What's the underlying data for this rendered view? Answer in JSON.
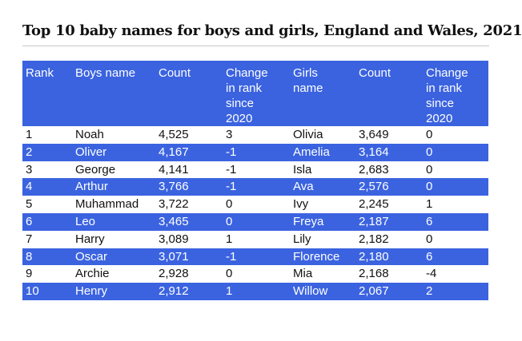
{
  "title": "Top 10 baby names for boys and girls, England and Wales, 2021",
  "headers": {
    "rank": "Rank",
    "boys_name": "Boys name",
    "boys_count": "Count",
    "boys_change": [
      "Change",
      "in rank",
      "since",
      "2020"
    ],
    "girls_name": [
      "Girls",
      "name"
    ],
    "girls_count": "Count",
    "girls_change": [
      "Change",
      "in rank",
      "since",
      "2020"
    ]
  },
  "rows": [
    {
      "rank": "1",
      "boy": "Noah",
      "boy_count": "4,525",
      "boy_change": "3",
      "girl": "Olivia",
      "girl_count": "3,649",
      "girl_change": "0"
    },
    {
      "rank": "2",
      "boy": "Oliver",
      "boy_count": "4,167",
      "boy_change": "-1",
      "girl": "Amelia",
      "girl_count": "3,164",
      "girl_change": "0"
    },
    {
      "rank": "3",
      "boy": "George",
      "boy_count": "4,141",
      "boy_change": "-1",
      "girl": "Isla",
      "girl_count": "2,683",
      "girl_change": "0"
    },
    {
      "rank": "4",
      "boy": "Arthur",
      "boy_count": "3,766",
      "boy_change": "-1",
      "girl": "Ava",
      "girl_count": "2,576",
      "girl_change": "0"
    },
    {
      "rank": "5",
      "boy": "Muhammad",
      "boy_count": "3,722",
      "boy_change": "0",
      "girl": "Ivy",
      "girl_count": "2,245",
      "girl_change": "1"
    },
    {
      "rank": "6",
      "boy": "Leo",
      "boy_count": "3,465",
      "boy_change": "0",
      "girl": "Freya",
      "girl_count": "2,187",
      "girl_change": "6"
    },
    {
      "rank": "7",
      "boy": "Harry",
      "boy_count": "3,089",
      "boy_change": "1",
      "girl": "Lily",
      "girl_count": "2,182",
      "girl_change": "0"
    },
    {
      "rank": "8",
      "boy": "Oscar",
      "boy_count": "3,071",
      "boy_change": "-1",
      "girl": "Florence",
      "girl_count": "2,180",
      "girl_change": "6"
    },
    {
      "rank": "9",
      "boy": "Archie",
      "boy_count": "2,928",
      "boy_change": "0",
      "girl": "Mia",
      "girl_count": "2,168",
      "girl_change": "-4"
    },
    {
      "rank": "10",
      "boy": "Henry",
      "boy_count": "2,912",
      "boy_change": "1",
      "girl": "Willow",
      "girl_count": "2,067",
      "girl_change": "2"
    }
  ],
  "colors": {
    "accent": "#3b63e0",
    "text": "#111111",
    "background": "#ffffff"
  }
}
